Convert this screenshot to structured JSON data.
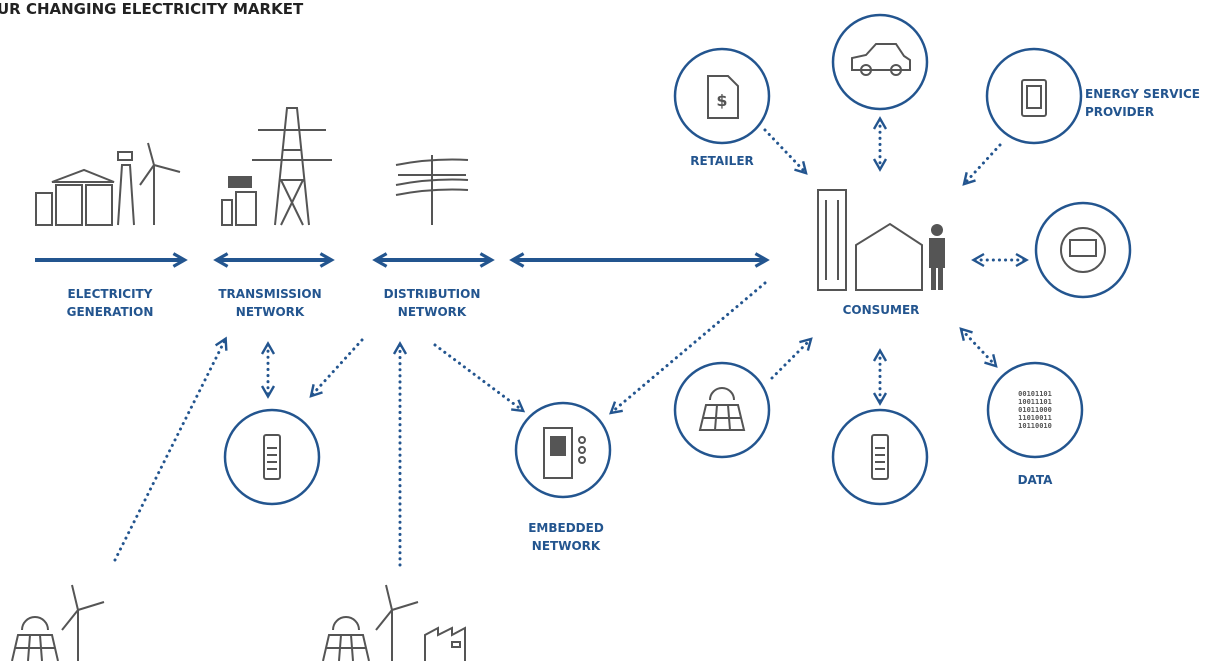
{
  "title": "UR CHANGING ELECTRICITY MARKET",
  "nodes": {
    "generation": {
      "label": [
        "ELECTRICITY",
        "GENERATION"
      ]
    },
    "transmission": {
      "label": [
        "TRANSMISSION",
        "NETWORK"
      ]
    },
    "distribution": {
      "label": [
        "DISTRIBUTION",
        "NETWORK"
      ]
    },
    "retailer": {
      "label": [
        "RETAILER"
      ]
    },
    "energy_service_provider": {
      "label": [
        "ENERGY SERVICE",
        "PROVIDER"
      ]
    },
    "consumer": {
      "label": [
        "CONSUMER"
      ]
    },
    "embedded_network": {
      "label": [
        "EMBEDDED",
        "NETWORK"
      ]
    },
    "data": {
      "label": [
        "DATA"
      ]
    }
  },
  "icons": {
    "dollar": "$",
    "binary": [
      "00101101",
      "10011101",
      "01011000",
      "11010011",
      "10110010"
    ]
  }
}
